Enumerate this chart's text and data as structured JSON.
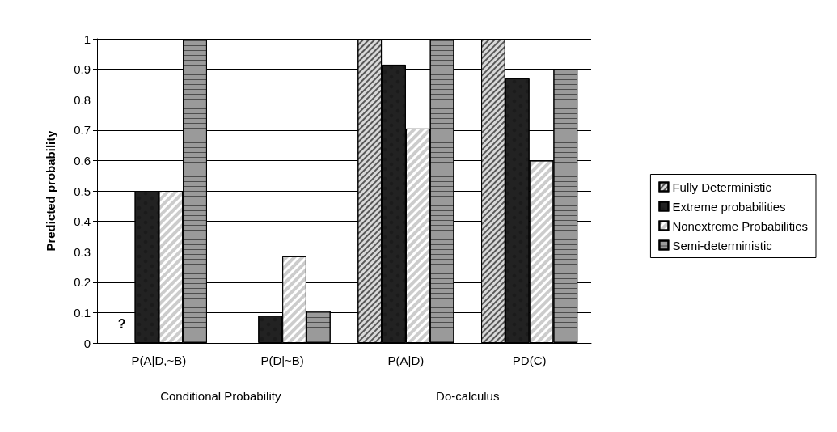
{
  "chart_data": {
    "type": "bar",
    "ylabel": "Predicted probability",
    "categories": [
      "P(A|D,~B)",
      "P(D|~B)",
      "P(A|D)",
      "PD(C)"
    ],
    "series": [
      {
        "name": "Fully Deterministic",
        "color": "#d9d9d9",
        "values": [
          null,
          null,
          1,
          1
        ]
      },
      {
        "name": "Extreme probabilities",
        "color": "#222222",
        "values": [
          0.5,
          0.09,
          0.915,
          0.87
        ]
      },
      {
        "name": "Nonextreme Probabilities",
        "color": "#ffffff",
        "values": [
          0.5,
          0.285,
          0.705,
          0.6
        ]
      },
      {
        "name": "Semi-deterministic",
        "color": "#9a9a9a",
        "values": [
          1,
          0.105,
          1,
          0.9
        ]
      }
    ],
    "ylim": [
      0,
      1
    ],
    "yticks": [
      0,
      0.1,
      0.2,
      0.3,
      0.4,
      0.5,
      0.6,
      0.7,
      0.8,
      0.9,
      1
    ],
    "grid": "y",
    "legend": "right",
    "annotations": [
      "?",
      "Conditional Probability",
      "Do-calculus"
    ]
  }
}
